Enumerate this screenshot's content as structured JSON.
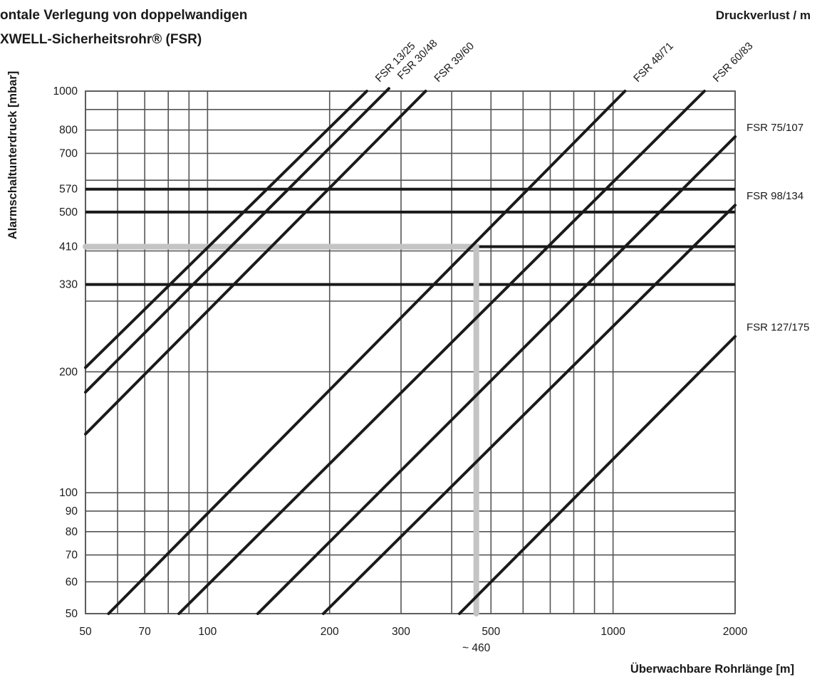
{
  "title_line1": "ontale Verlegung von doppelwandigen",
  "title_line2": "XWELL-Sicherheitsrohr® (FSR)",
  "header_right": "Druckverlust / m",
  "colors": {
    "grid": "#555555",
    "series": "#1a1a1a",
    "thresholds": "#1a1a1a",
    "example_path": "#c4c4c4",
    "text": "#1a1a1a"
  },
  "chart_data": {
    "type": "line",
    "xscale": "log",
    "yscale": "log",
    "xlim": [
      50,
      2000
    ],
    "ylim": [
      50,
      1000
    ],
    "xlabel": "Überwachbare Rohrlänge [m]",
    "ylabel": "Alarmschaltunterdruck [mbar]",
    "grid": true,
    "x_ticks": [
      50,
      70,
      100,
      200,
      300,
      500,
      1000,
      2000
    ],
    "x_tick_labels": [
      "50",
      "70",
      "100",
      "200",
      "300",
      "500",
      "1000",
      "2000"
    ],
    "y_ticks": [
      50,
      60,
      70,
      80,
      90,
      100,
      200,
      330,
      410,
      500,
      570,
      700,
      800,
      1000
    ],
    "y_tick_labels": [
      "50",
      "60",
      "70",
      "80",
      "90",
      "100",
      "200",
      "330",
      "410",
      "500",
      "570",
      "700",
      "800",
      "1000"
    ],
    "series": [
      {
        "name": "FSR 13/25",
        "x": [
          50,
          247
        ],
        "y": [
          205,
          1000
        ]
      },
      {
        "name": "FSR 30/48",
        "x": [
          50,
          280
        ],
        "y": [
          178,
          1015
        ]
      },
      {
        "name": "FSR 39/60",
        "x": [
          50,
          345
        ],
        "y": [
          140,
          1000
        ]
      },
      {
        "name": "FSR 48/71",
        "x": [
          57,
          1070
        ],
        "y": [
          50,
          1000
        ]
      },
      {
        "name": "FSR 60/83",
        "x": [
          85,
          1680
        ],
        "y": [
          50,
          1000
        ]
      },
      {
        "name": "FSR 75/107",
        "x": [
          133,
          2000
        ],
        "y": [
          50,
          770
        ]
      },
      {
        "name": "FSR 98/134",
        "x": [
          193,
          2000
        ],
        "y": [
          50,
          520
        ]
      },
      {
        "name": "FSR 127/175",
        "x": [
          418,
          2000
        ],
        "y": [
          50,
          245
        ]
      }
    ],
    "label_positions": [
      "top",
      "top",
      "top",
      "top",
      "top",
      "right",
      "right",
      "right"
    ],
    "thresholds": [
      {
        "y": 570,
        "x_from": 50,
        "x_to": 2000
      },
      {
        "y": 500,
        "x_from": 50,
        "x_to": 2000
      },
      {
        "y": 410,
        "x_from": 460,
        "x_to": 2000
      },
      {
        "y": 330,
        "x_from": 50,
        "x_to": 2000
      }
    ],
    "example_path": {
      "y": 410,
      "x": 460,
      "annotation": "~ 460"
    }
  }
}
